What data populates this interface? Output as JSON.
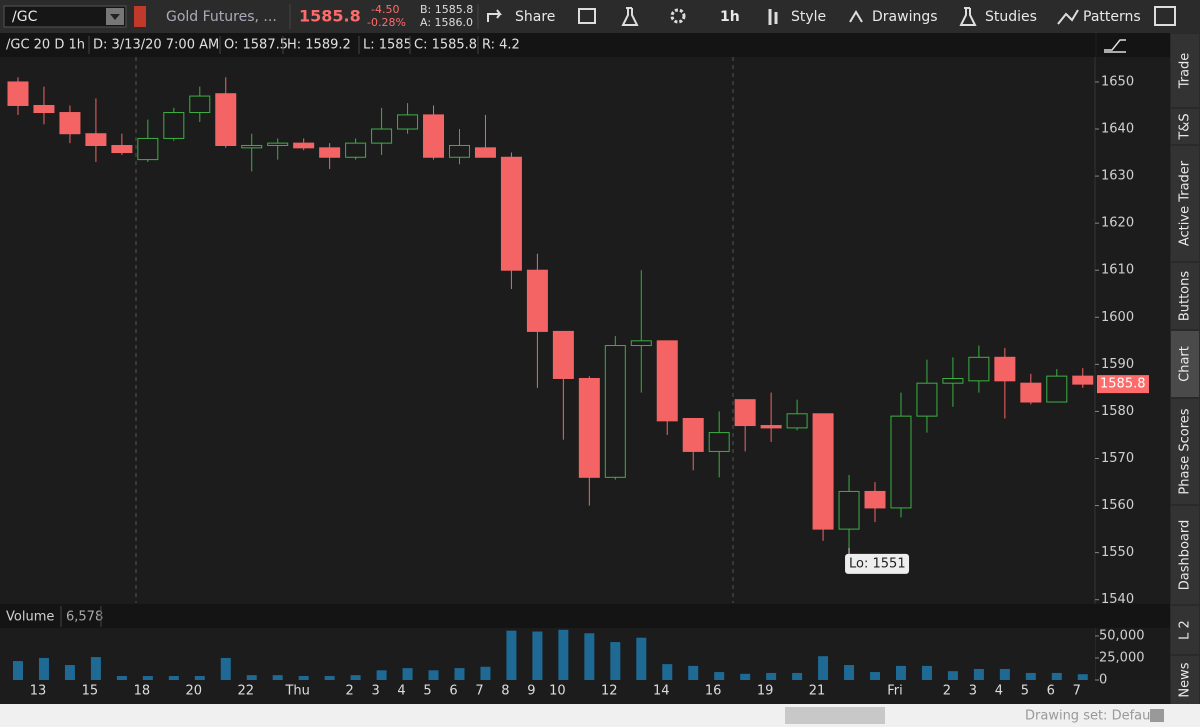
{
  "toolbar": {
    "symbol": "/GC",
    "description": "Gold Futures, ...",
    "last": "1585.8",
    "net_change": "-4.50",
    "percent_change": "-0.28%",
    "bid": "B: 1585.8",
    "ask": "A: 1586.0",
    "buttons": [
      "Share",
      "1h",
      "Style",
      "Drawings",
      "Studies",
      "Patterns"
    ]
  },
  "info_bar": [
    "/GC 20 D 1h",
    "D: 3/13/20 7:00 AM",
    "O: 1587.5",
    "H: 1589.2",
    "L: 1585",
    "C: 1585.8",
    "R: 4.2"
  ],
  "side_tabs": [
    "Trade",
    "T&S",
    "Active Trader",
    "Buttons",
    "Chart",
    "Phase Scores",
    "Dashboard",
    "L 2",
    "News"
  ],
  "footer": "Drawing set: Default",
  "chart_data": [
    {
      "type": "candlestick",
      "categories": [
        null,
        "13",
        null,
        "15",
        null,
        "18",
        null,
        "20",
        null,
        "22",
        null,
        "Thu",
        null,
        "2",
        "3",
        "4",
        "5",
        "6",
        "7",
        "8",
        "9",
        "10",
        null,
        "12",
        null,
        "14",
        null,
        "16",
        null,
        "19",
        null,
        "21",
        null,
        null,
        "Fri",
        null,
        "2",
        "3",
        "4",
        "5",
        "6",
        "7"
      ],
      "open": [
        1650,
        1645,
        1643.5,
        1639,
        1636.5,
        1633.5,
        1638,
        1643.5,
        1647.5,
        1636,
        1636.5,
        1637,
        1636,
        1634,
        1637,
        1640,
        1643,
        1634,
        1636,
        1634,
        1610,
        1597,
        1587,
        1566,
        1594,
        1595,
        1578.5,
        1571.5,
        1582.5,
        1577,
        1576.5,
        1579.5,
        1555,
        1563,
        1559.5,
        1579,
        1586,
        1586.5,
        1591.5,
        1586,
        1582,
        1587.5
      ],
      "high": [
        1651,
        1649,
        1645,
        1646.5,
        1639,
        1642,
        1644.5,
        1649,
        1651,
        1639,
        1638,
        1638,
        1637,
        1638,
        1644.5,
        1645.5,
        1645,
        1640,
        1643,
        1635,
        1613.5,
        1597,
        1587.5,
        1596,
        1610,
        1595,
        1578.5,
        1580,
        1582.5,
        1584,
        1582.5,
        1579.5,
        1566.5,
        1565,
        1584,
        1591,
        1591.5,
        1594,
        1593.5,
        1588,
        1589,
        1589.2
      ],
      "low": [
        1643,
        1641,
        1637,
        1633,
        1634.5,
        1633,
        1637.5,
        1641.5,
        1636,
        1631,
        1633.5,
        1635.5,
        1631.5,
        1633.5,
        1634.5,
        1639,
        1633.5,
        1632.5,
        1634,
        1606,
        1585,
        1574,
        1560,
        1565.5,
        1584,
        1575,
        1567.5,
        1566,
        1571.5,
        1573.5,
        1576,
        1552.5,
        1551,
        1556.5,
        1557.5,
        1575.5,
        1581,
        1584,
        1578.5,
        1581.5,
        1582,
        1585
      ],
      "close": [
        1645,
        1643.5,
        1639,
        1636.5,
        1635,
        1638,
        1643.5,
        1647,
        1636.5,
        1636.5,
        1637,
        1636,
        1634,
        1637,
        1640,
        1643,
        1634,
        1636.5,
        1634,
        1610,
        1597,
        1587,
        1566,
        1594,
        1595,
        1578,
        1571.5,
        1575.5,
        1577,
        1576.5,
        1579.5,
        1555,
        1563,
        1559.5,
        1579,
        1586,
        1587,
        1591.5,
        1586.5,
        1582,
        1587.5,
        1585.8
      ],
      "up_color": "#3cb043",
      "down_color": "#f46464",
      "ylim": [
        1539.3,
        1655.3
      ],
      "yticks": [
        1540,
        1550,
        1560,
        1570,
        1580,
        1590,
        1600,
        1610,
        1620,
        1630,
        1640,
        1650
      ],
      "last": 1585.8,
      "annotation": "Lo: 1551"
    },
    {
      "type": "bar",
      "title": "Volume",
      "last_label": "6,578",
      "values": [
        21500,
        25000,
        17000,
        26000,
        4500,
        4500,
        4500,
        4500,
        25000,
        5500,
        5500,
        4500,
        4500,
        5500,
        11000,
        13500,
        11000,
        13500,
        15000,
        56000,
        55000,
        57000,
        53000,
        43000,
        48000,
        18000,
        16000,
        9000,
        7000,
        8000,
        8000,
        27000,
        17000,
        9000,
        16000,
        16000,
        10000,
        12500,
        12500,
        8000,
        8000,
        6578
      ],
      "color": "#1e6a94",
      "ylim": [
        0,
        59000
      ],
      "yticks": [
        {
          "value": 50000,
          "label": "50,000"
        },
        {
          "value": 25000,
          "label": "25,000"
        },
        0
      ]
    }
  ]
}
